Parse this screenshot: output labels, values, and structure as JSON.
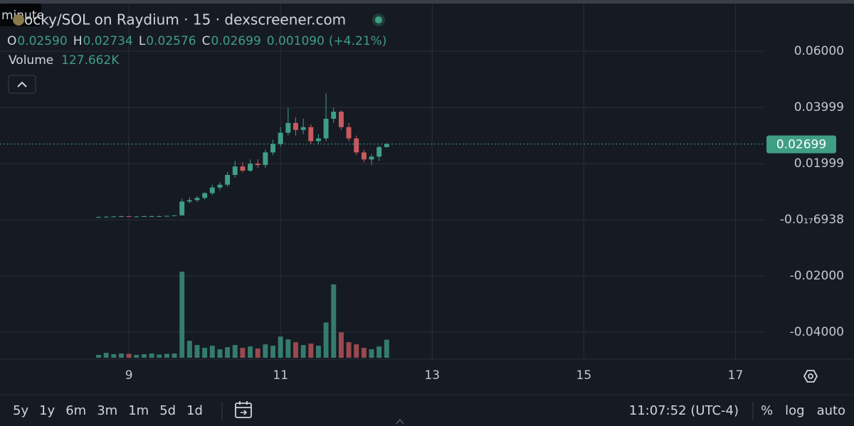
{
  "header": {
    "tooltip": "minute",
    "title": "ocky/SOL on Raydium · 15 · dexscreener.com",
    "ohlc": [
      {
        "key": "O",
        "value": "0.02590"
      },
      {
        "key": "H",
        "value": "0.02734"
      },
      {
        "key": "L",
        "value": "0.02576"
      },
      {
        "key": "C",
        "value": "0.02699"
      }
    ],
    "change": "0.001090",
    "change_pct": "(+4.21%)",
    "volume_label": "Volume",
    "volume_value": "127.662K"
  },
  "chart_data": {
    "type": "candlestick",
    "x": [
      8.6,
      8.7,
      8.8,
      8.9,
      9.0,
      9.1,
      9.2,
      9.3,
      9.4,
      9.5,
      9.6,
      9.7,
      9.8,
      9.9,
      10.0,
      10.1,
      10.2,
      10.3,
      10.4,
      10.5,
      10.6,
      10.7,
      10.8,
      10.9,
      11.0,
      11.1,
      11.2,
      11.3,
      11.4,
      11.5,
      11.6,
      11.7,
      11.8,
      11.9,
      12.0,
      12.1,
      12.2,
      12.3,
      12.4
    ],
    "open": [
      0.0009,
      0.001,
      0.0011,
      0.0012,
      0.0013,
      0.0012,
      0.0012,
      0.0013,
      0.0013,
      0.0013,
      0.0014,
      0.0016,
      0.0065,
      0.007,
      0.0078,
      0.0095,
      0.0115,
      0.0125,
      0.016,
      0.019,
      0.0175,
      0.02,
      0.0195,
      0.024,
      0.027,
      0.031,
      0.0345,
      0.032,
      0.033,
      0.028,
      0.029,
      0.036,
      0.0385,
      0.033,
      0.029,
      0.024,
      0.0215,
      0.0225,
      0.0259
    ],
    "high": [
      0.0012,
      0.0013,
      0.0014,
      0.0015,
      0.0015,
      0.0014,
      0.0014,
      0.0015,
      0.0015,
      0.0015,
      0.0016,
      0.0075,
      0.008,
      0.0085,
      0.01,
      0.0125,
      0.0135,
      0.017,
      0.021,
      0.0205,
      0.0215,
      0.0215,
      0.025,
      0.0285,
      0.033,
      0.04,
      0.0365,
      0.036,
      0.034,
      0.0305,
      0.045,
      0.04,
      0.039,
      0.0345,
      0.03,
      0.025,
      0.0235,
      0.0265,
      0.02734
    ],
    "low": [
      0.0008,
      0.0009,
      0.001,
      0.0011,
      0.0011,
      0.001,
      0.0011,
      0.0011,
      0.0012,
      0.0012,
      0.0013,
      0.0015,
      0.0058,
      0.0064,
      0.0072,
      0.0088,
      0.0105,
      0.0118,
      0.015,
      0.0168,
      0.017,
      0.0185,
      0.0185,
      0.023,
      0.026,
      0.03,
      0.03,
      0.0305,
      0.027,
      0.027,
      0.028,
      0.0345,
      0.032,
      0.028,
      0.023,
      0.0205,
      0.0195,
      0.021,
      0.02576
    ],
    "close": [
      0.001,
      0.0011,
      0.0012,
      0.0013,
      0.0012,
      0.0012,
      0.0013,
      0.0013,
      0.0013,
      0.0014,
      0.0016,
      0.0065,
      0.007,
      0.0078,
      0.0095,
      0.0115,
      0.0125,
      0.016,
      0.019,
      0.0175,
      0.02,
      0.0195,
      0.024,
      0.027,
      0.031,
      0.0345,
      0.032,
      0.033,
      0.028,
      0.029,
      0.036,
      0.0385,
      0.033,
      0.029,
      0.024,
      0.0215,
      0.0225,
      0.0259,
      0.02699
    ],
    "volume": [
      20,
      35,
      25,
      30,
      28,
      20,
      25,
      30,
      22,
      28,
      30,
      610,
      120,
      90,
      70,
      85,
      60,
      75,
      90,
      70,
      80,
      65,
      95,
      85,
      150,
      130,
      110,
      90,
      100,
      85,
      250,
      520,
      180,
      110,
      95,
      70,
      60,
      80,
      127.662
    ],
    "volume_ylim": [
      0,
      620
    ],
    "up_color": "#3f9e86",
    "down_color": "#c85a5e",
    "xlim": [
      7.3,
      17.39
    ],
    "xticks": [
      9,
      11,
      13,
      15,
      17
    ],
    "ylim": [
      -0.0496,
      0.077
    ],
    "yticks": [
      {
        "value": 0.06,
        "label": "0.06000"
      },
      0.03999,
      0.01999,
      {
        "value": -6.938e-22,
        "label": "-0.0₁₇6938"
      },
      {
        "value": -0.02,
        "label": "-0.02000"
      },
      {
        "value": -0.04,
        "label": "-0.04000"
      }
    ],
    "grid": true
  },
  "toolbar": {
    "ranges": [
      "5y",
      "1y",
      "6m",
      "3m",
      "1m",
      "5d",
      "1d"
    ],
    "time": "11:07:52 (UTC-4)",
    "options": [
      "%",
      "log",
      "auto"
    ]
  }
}
